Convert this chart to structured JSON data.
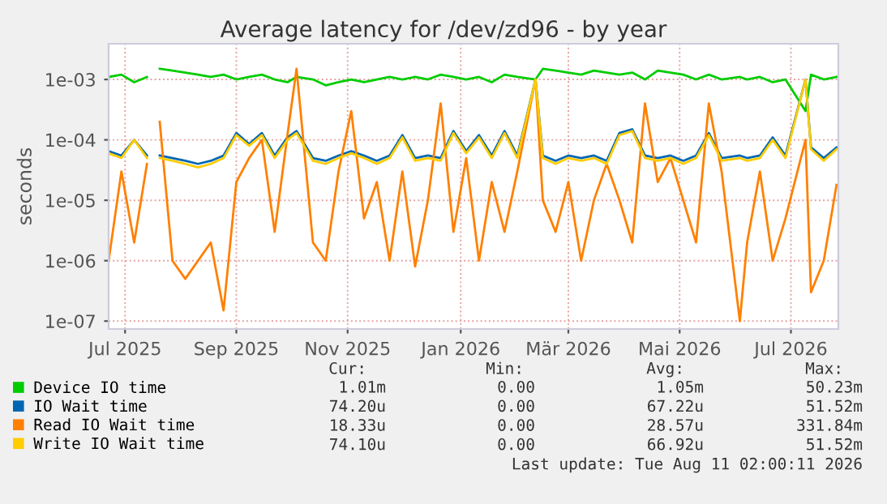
{
  "chart_data": {
    "type": "line",
    "title": "Average latency for /dev/zd96 - by year",
    "ylabel": "seconds",
    "x": [
      "2025-07-07",
      "2025-07-14",
      "2025-07-21",
      "2025-07-28",
      "2025-07-31",
      "2025-08-04",
      "2025-08-11",
      "2025-08-18",
      "2025-08-25",
      "2025-09-01",
      "2025-09-08",
      "2025-09-15",
      "2025-09-22",
      "2025-09-29",
      "2025-10-06",
      "2025-10-13",
      "2025-10-18",
      "2025-10-27",
      "2025-11-03",
      "2025-11-10",
      "2025-11-17",
      "2025-11-24",
      "2025-12-01",
      "2025-12-08",
      "2025-12-15",
      "2025-12-22",
      "2025-12-29",
      "2026-01-05",
      "2026-01-12",
      "2026-01-19",
      "2026-01-26",
      "2026-02-02",
      "2026-02-09",
      "2026-02-16",
      "2026-02-26",
      "2026-03-02",
      "2026-03-09",
      "2026-03-16",
      "2026-03-23",
      "2026-03-30",
      "2026-04-06",
      "2026-04-13",
      "2026-04-20",
      "2026-04-27",
      "2026-05-04",
      "2026-05-11",
      "2026-05-18",
      "2026-05-25",
      "2026-06-01",
      "2026-06-08",
      "2026-06-18",
      "2026-06-22",
      "2026-06-29",
      "2026-07-06",
      "2026-07-13",
      "2026-07-24",
      "2026-07-27",
      "2026-08-03",
      "2026-08-10"
    ],
    "series": [
      {
        "name": "Device IO time",
        "color": "#00cc00",
        "values": [
          0.0011,
          0.0012,
          0.0009,
          0.0011,
          null,
          0.0015,
          0.0014,
          0.0013,
          0.0012,
          0.0011,
          0.0012,
          0.001,
          0.0011,
          0.0012,
          0.001,
          0.0009,
          0.0011,
          0.001,
          0.0008,
          0.0009,
          0.001,
          0.0009,
          0.001,
          0.0011,
          0.001,
          0.0011,
          0.001,
          0.0012,
          0.0011,
          0.001,
          0.0011,
          0.0009,
          0.0012,
          0.0011,
          0.001,
          0.0015,
          0.0014,
          0.0013,
          0.0012,
          0.0014,
          0.0013,
          0.0012,
          0.0013,
          0.001,
          0.0014,
          0.0013,
          0.0012,
          0.001,
          0.0012,
          0.001,
          0.0011,
          0.001,
          0.0011,
          0.0009,
          0.001,
          0.0003,
          0.0012,
          0.001,
          0.0011
        ]
      },
      {
        "name": "IO Wait time",
        "color": "#0066b3",
        "values": [
          6.5e-05,
          5.5e-05,
          0.0001,
          5.5e-05,
          null,
          5.5e-05,
          5e-05,
          4.5e-05,
          4e-05,
          4.5e-05,
          5.5e-05,
          0.00013,
          8.5e-05,
          0.00013,
          5.5e-05,
          0.00011,
          0.00014,
          5e-05,
          4.5e-05,
          5.5e-05,
          6.5e-05,
          5.5e-05,
          4.5e-05,
          5.5e-05,
          0.00012,
          5e-05,
          5.5e-05,
          5e-05,
          0.00014,
          6.5e-05,
          0.00012,
          5.5e-05,
          0.00014,
          5.5e-05,
          0.001,
          5.5e-05,
          4.5e-05,
          5.5e-05,
          5e-05,
          5.5e-05,
          4.5e-05,
          0.00013,
          0.00015,
          5.5e-05,
          5e-05,
          5.5e-05,
          4.5e-05,
          5.5e-05,
          0.00013,
          5e-05,
          5.5e-05,
          5e-05,
          5.5e-05,
          0.00011,
          5.5e-05,
          0.001,
          7.5e-05,
          5e-05,
          7.5e-05
        ]
      },
      {
        "name": "Read IO Wait time",
        "color": "#ff8000",
        "values": [
          1e-06,
          3e-05,
          2e-06,
          4e-05,
          null,
          0.0002,
          1e-06,
          5e-07,
          1e-06,
          2e-06,
          1.5e-07,
          2e-05,
          5e-05,
          0.0001,
          3e-06,
          0.00012,
          0.0015,
          2e-06,
          1e-06,
          3e-05,
          0.0003,
          5e-06,
          2e-05,
          1e-06,
          3e-05,
          8e-07,
          1e-05,
          0.0004,
          3e-06,
          5e-05,
          1e-06,
          2e-05,
          3e-06,
          3e-05,
          0.001,
          1e-05,
          3e-06,
          2e-05,
          1e-06,
          1e-05,
          4e-05,
          1e-05,
          2e-06,
          0.0004,
          2e-05,
          5e-05,
          1e-05,
          2e-06,
          0.0004,
          3e-05,
          1e-07,
          2e-06,
          3e-05,
          1e-06,
          5e-06,
          0.0001,
          3e-07,
          1e-06,
          1.8e-05
        ]
      },
      {
        "name": "Write IO Wait time",
        "color": "#ffcc00",
        "values": [
          6e-05,
          5e-05,
          0.0001,
          5e-05,
          null,
          5e-05,
          4.5e-05,
          4e-05,
          3.5e-05,
          4e-05,
          5e-05,
          0.00012,
          8e-05,
          0.00012,
          5e-05,
          0.0001,
          0.00013,
          4.5e-05,
          4e-05,
          5e-05,
          6e-05,
          5e-05,
          4e-05,
          5e-05,
          0.00011,
          4.5e-05,
          5e-05,
          4.5e-05,
          0.00013,
          6e-05,
          0.00011,
          5e-05,
          0.00013,
          5e-05,
          0.001,
          5e-05,
          4e-05,
          5e-05,
          4.5e-05,
          5e-05,
          4e-05,
          0.00012,
          0.00014,
          5e-05,
          4.5e-05,
          5e-05,
          4e-05,
          5e-05,
          0.00012,
          4.5e-05,
          5e-05,
          4.5e-05,
          5e-05,
          0.0001,
          5e-05,
          0.001,
          7e-05,
          4.5e-05,
          7e-05
        ]
      }
    ],
    "log": "y",
    "ylim": [
      7.4e-08,
      0.0039
    ],
    "yticks": [
      {
        "value": 1e-07,
        "label": "1e-07"
      },
      {
        "value": 1e-06,
        "label": "1e-06"
      },
      {
        "value": 1e-05,
        "label": "1e-05"
      },
      {
        "value": 0.0001,
        "label": "1e-04"
      },
      {
        "value": 0.001,
        "label": "1e-03"
      }
    ],
    "xlim": [
      "2025-07-07",
      "2026-08-11"
    ],
    "xticks": [
      {
        "value": "2025-07-16",
        "label": "Jul 2025"
      },
      {
        "value": "2025-09-15",
        "label": "Sep 2025"
      },
      {
        "value": "2025-11-15",
        "label": "Nov 2025"
      },
      {
        "value": "2026-01-16",
        "label": "Jan 2026"
      },
      {
        "value": "2026-03-16",
        "label": "Mär 2026"
      },
      {
        "value": "2026-05-16",
        "label": "Mai 2026"
      },
      {
        "value": "2026-07-16",
        "label": "Jul 2026"
      }
    ],
    "grid": true,
    "legend": "bottom",
    "marker": "none",
    "line_style": "solid",
    "annotations": [
      "Cur:",
      "Min:",
      "Avg:",
      "Max:",
      "1.01m",
      "0.00",
      "1.05m",
      "50.23m",
      "74.20u",
      "0.00",
      "67.22u",
      "51.52m",
      "18.33u",
      "0.00",
      "28.57u",
      "331.84m",
      "74.10u",
      "0.00",
      "66.92u",
      "51.52m",
      "Last update: Tue Aug 11 02:00:11 2026"
    ]
  }
}
